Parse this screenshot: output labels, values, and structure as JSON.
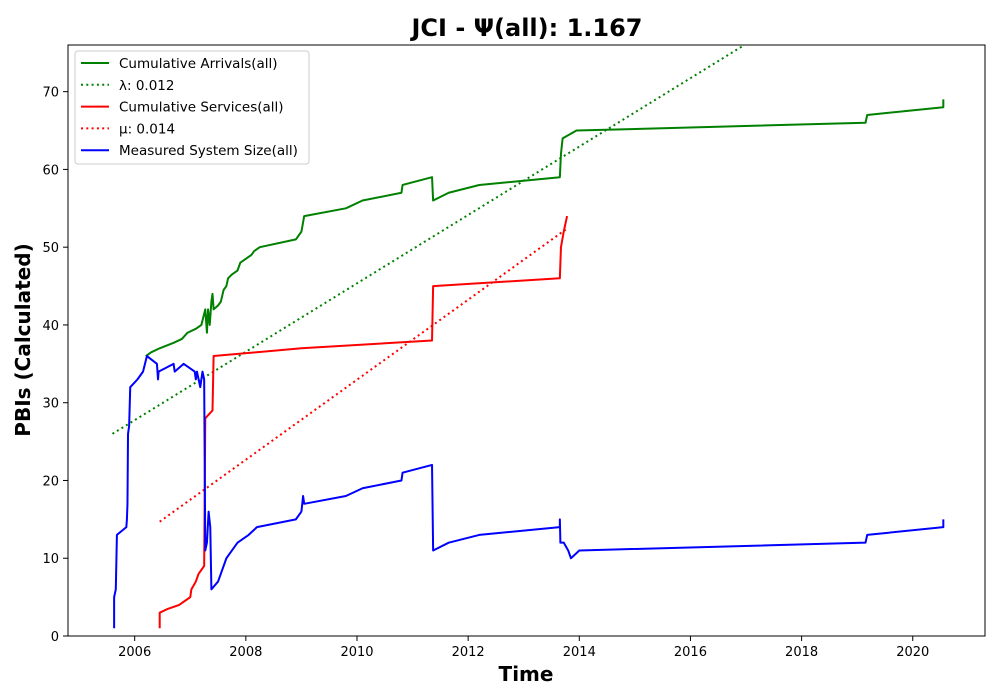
{
  "chart_data": {
    "type": "line",
    "title": "JCI -  Ψ(all): 1.167",
    "xlabel": "Time",
    "ylabel": "PBIs (Calculated)",
    "xlim": [
      2004.8,
      2021.3
    ],
    "ylim": [
      0,
      76
    ],
    "x_ticks": [
      {
        "value": 2006,
        "label": "2006"
      },
      {
        "value": 2008,
        "label": "2008"
      },
      {
        "value": 2010,
        "label": "2010"
      },
      {
        "value": 2012,
        "label": "2012"
      },
      {
        "value": 2014,
        "label": "2014"
      },
      {
        "value": 2016,
        "label": "2016"
      },
      {
        "value": 2018,
        "label": "2018"
      },
      {
        "value": 2020,
        "label": "2020"
      }
    ],
    "y_ticks": [
      {
        "value": 0,
        "label": "0"
      },
      {
        "value": 10,
        "label": "10"
      },
      {
        "value": 20,
        "label": "20"
      },
      {
        "value": 30,
        "label": "30"
      },
      {
        "value": 40,
        "label": "40"
      },
      {
        "value": 50,
        "label": "50"
      },
      {
        "value": 60,
        "label": "60"
      },
      {
        "value": 70,
        "label": "70"
      }
    ],
    "legend": {
      "placement": "upper-left",
      "entries": [
        {
          "label": "Cumulative Arrivals(all)",
          "color": "#008000",
          "style": "solid"
        },
        {
          "label": "λ: 0.012",
          "color": "#008000",
          "style": "dotted"
        },
        {
          "label": "Cumulative Services(all)",
          "color": "#ff0000",
          "style": "solid"
        },
        {
          "label": "μ: 0.014",
          "color": "#ff0000",
          "style": "dotted"
        },
        {
          "label": "Measured System Size(all)",
          "color": "#0000ff",
          "style": "solid"
        }
      ]
    },
    "series": [
      {
        "name": "Cumulative Arrivals(all)",
        "color": "#008000",
        "style": "solid",
        "points": [
          [
            2006.2,
            36
          ],
          [
            2006.3,
            36.5
          ],
          [
            2006.45,
            37
          ],
          [
            2006.7,
            37.7
          ],
          [
            2006.85,
            38.2
          ],
          [
            2006.95,
            39
          ],
          [
            2007.1,
            39.5
          ],
          [
            2007.2,
            40
          ],
          [
            2007.27,
            42
          ],
          [
            2007.3,
            39
          ],
          [
            2007.32,
            42
          ],
          [
            2007.35,
            40
          ],
          [
            2007.38,
            43
          ],
          [
            2007.4,
            44
          ],
          [
            2007.42,
            42
          ],
          [
            2007.5,
            42.5
          ],
          [
            2007.55,
            43
          ],
          [
            2007.6,
            44.5
          ],
          [
            2007.65,
            45
          ],
          [
            2007.68,
            46
          ],
          [
            2007.75,
            46.5
          ],
          [
            2007.85,
            47
          ],
          [
            2007.9,
            48
          ],
          [
            2008.0,
            48.5
          ],
          [
            2008.1,
            49
          ],
          [
            2008.15,
            49.5
          ],
          [
            2008.25,
            50
          ],
          [
            2008.9,
            51
          ],
          [
            2009.0,
            52
          ],
          [
            2009.05,
            54
          ],
          [
            2009.8,
            55
          ],
          [
            2010.1,
            56
          ],
          [
            2010.8,
            57
          ],
          [
            2010.82,
            58
          ],
          [
            2011.35,
            59
          ],
          [
            2011.37,
            56
          ],
          [
            2011.65,
            57
          ],
          [
            2012.2,
            58
          ],
          [
            2013.65,
            59
          ],
          [
            2013.67,
            62
          ],
          [
            2013.7,
            64
          ],
          [
            2013.95,
            65
          ],
          [
            2019.15,
            66
          ],
          [
            2019.18,
            67
          ],
          [
            2020.55,
            68
          ],
          [
            2020.55,
            69
          ]
        ]
      },
      {
        "name": "λ: 0.012",
        "color": "#008000",
        "style": "dotted",
        "points": [
          [
            2005.6,
            26
          ],
          [
            2016.97,
            76
          ]
        ]
      },
      {
        "name": "Cumulative Services(all)",
        "color": "#ff0000",
        "style": "solid",
        "points": [
          [
            2006.45,
            1
          ],
          [
            2006.45,
            3
          ],
          [
            2006.6,
            3.5
          ],
          [
            2006.8,
            4
          ],
          [
            2007.0,
            5
          ],
          [
            2007.02,
            6
          ],
          [
            2007.1,
            7
          ],
          [
            2007.15,
            8
          ],
          [
            2007.25,
            9
          ],
          [
            2007.27,
            28
          ],
          [
            2007.4,
            29
          ],
          [
            2007.42,
            36
          ],
          [
            2009.0,
            37
          ],
          [
            2011.35,
            38
          ],
          [
            2011.37,
            45
          ],
          [
            2013.65,
            46
          ],
          [
            2013.67,
            50
          ],
          [
            2013.72,
            52
          ],
          [
            2013.75,
            53
          ],
          [
            2013.78,
            54
          ]
        ]
      },
      {
        "name": "μ: 0.014",
        "color": "#ff0000",
        "style": "dotted",
        "points": [
          [
            2006.45,
            14.7
          ],
          [
            2013.8,
            52.5
          ]
        ]
      },
      {
        "name": "Measured System Size(all)",
        "color": "#0000ff",
        "style": "solid",
        "points": [
          [
            2005.63,
            1
          ],
          [
            2005.63,
            5
          ],
          [
            2005.66,
            6
          ],
          [
            2005.68,
            13
          ],
          [
            2005.85,
            14
          ],
          [
            2005.86,
            15
          ],
          [
            2005.87,
            17
          ],
          [
            2005.88,
            26
          ],
          [
            2005.9,
            27
          ],
          [
            2005.92,
            32
          ],
          [
            2006.05,
            33
          ],
          [
            2006.15,
            34
          ],
          [
            2006.22,
            36
          ],
          [
            2006.4,
            35
          ],
          [
            2006.42,
            33
          ],
          [
            2006.43,
            34
          ],
          [
            2006.7,
            35
          ],
          [
            2006.72,
            34
          ],
          [
            2006.88,
            35
          ],
          [
            2007.08,
            34
          ],
          [
            2007.1,
            33
          ],
          [
            2007.12,
            34
          ],
          [
            2007.18,
            32
          ],
          [
            2007.22,
            34
          ],
          [
            2007.25,
            33
          ],
          [
            2007.27,
            11
          ],
          [
            2007.3,
            12
          ],
          [
            2007.33,
            16
          ],
          [
            2007.36,
            14
          ],
          [
            2007.38,
            6
          ],
          [
            2007.5,
            7
          ],
          [
            2007.55,
            8
          ],
          [
            2007.65,
            10
          ],
          [
            2007.75,
            11
          ],
          [
            2007.85,
            12
          ],
          [
            2008.05,
            13
          ],
          [
            2008.2,
            14
          ],
          [
            2008.9,
            15
          ],
          [
            2009.0,
            16
          ],
          [
            2009.03,
            18
          ],
          [
            2009.05,
            17
          ],
          [
            2009.8,
            18
          ],
          [
            2010.1,
            19
          ],
          [
            2010.8,
            20
          ],
          [
            2010.82,
            21
          ],
          [
            2011.35,
            22
          ],
          [
            2011.37,
            11
          ],
          [
            2011.65,
            12
          ],
          [
            2012.2,
            13
          ],
          [
            2013.65,
            14
          ],
          [
            2013.65,
            15
          ],
          [
            2013.66,
            12
          ],
          [
            2013.72,
            12
          ],
          [
            2013.8,
            11
          ],
          [
            2013.85,
            10
          ],
          [
            2014.0,
            11
          ],
          [
            2019.15,
            12
          ],
          [
            2019.18,
            13
          ],
          [
            2020.55,
            14
          ],
          [
            2020.55,
            15
          ]
        ]
      }
    ]
  }
}
